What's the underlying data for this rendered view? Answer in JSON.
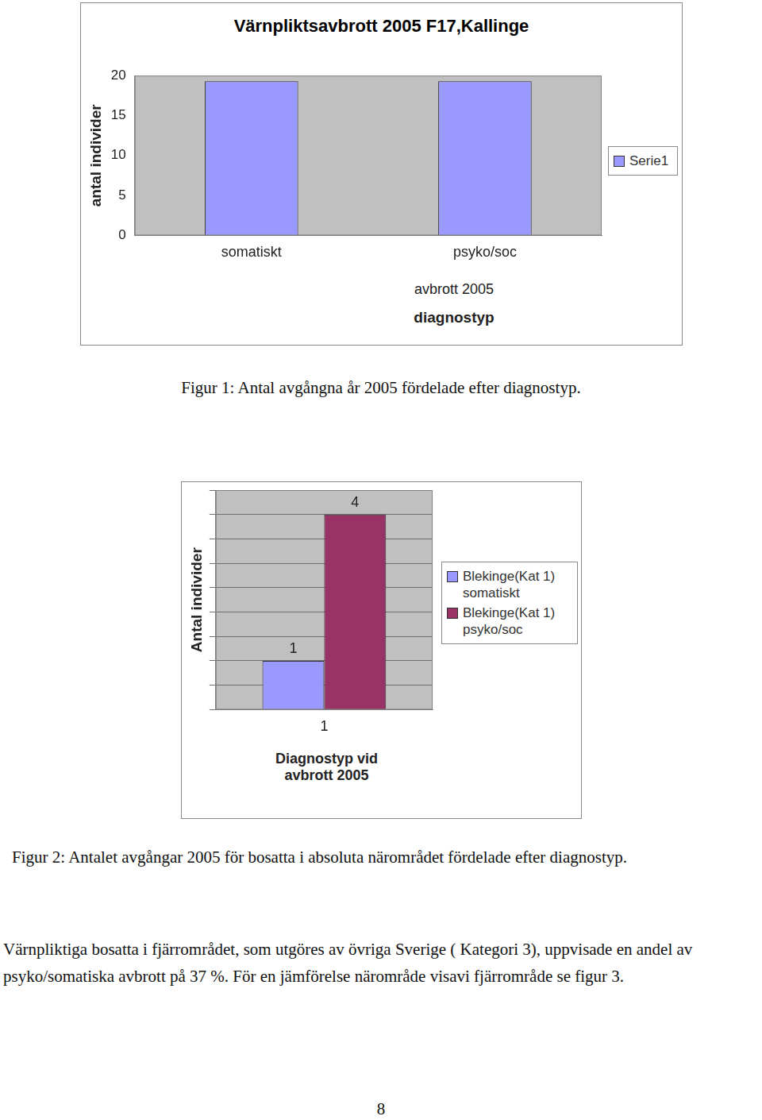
{
  "chart_data": [
    {
      "type": "bar",
      "title": "Värnpliktsavbrott 2005 F17,Kallinge",
      "ylabel": "antal individer",
      "category_group": "avbrott 2005",
      "xlabel": "diagnostyp",
      "categories": [
        "somatiskt",
        "psyko/soc"
      ],
      "series": [
        {
          "name": "Serie1",
          "color": "#9999ff",
          "values": [
            19.3,
            19.3
          ]
        }
      ],
      "ylim": [
        0,
        20
      ],
      "yticks": [
        0,
        5,
        10,
        15,
        20
      ],
      "grid": false,
      "legend": "right"
    },
    {
      "type": "bar",
      "ylabel": "Antal individer",
      "xlabel": "Diagnostyp vid avbrott 2005",
      "categories": [
        "1"
      ],
      "series": [
        {
          "name": "Blekinge(Kat 1) somatiskt",
          "color": "#9999ff",
          "values": [
            1
          ]
        },
        {
          "name": "Blekinge(Kat 1) psyko/soc",
          "color": "#993366",
          "values": [
            4
          ]
        }
      ],
      "ylim": [
        0,
        4.5
      ],
      "yticks": [
        0,
        0.5,
        1,
        1.5,
        2,
        2.5,
        3,
        3.5,
        4,
        4.5
      ],
      "grid": true,
      "legend": "right",
      "data_labels": true,
      "tick_labels": "x"
    }
  ],
  "document": {
    "captions": [
      "Figur 1: Antal avgångna år 2005 fördelade efter diagnostyp.",
      "Figur 2: Antalet avgångar 2005 för bosatta i absoluta närområdet fördelade efter diagnostyp."
    ],
    "paragraph": "Värnpliktiga bosatta i fjärrområdet, som utgöres av övriga Sverige ( Kategori 3), uppvisade en andel av psyko/somatiska avbrott på 37 %. För en jämförelse närområde visavi fjärrområde se figur 3.",
    "page_number": "8"
  }
}
